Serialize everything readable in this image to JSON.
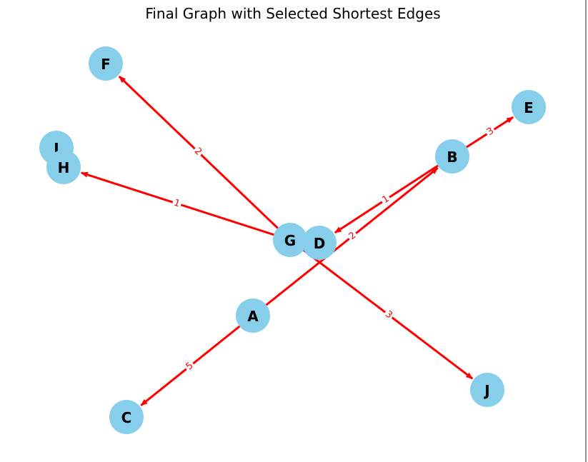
{
  "title": "Final Graph with Selected Shortest Edges",
  "colors": {
    "node": "#87ceeb",
    "edge": "#ff0000",
    "label": "#000000"
  },
  "nodes": [
    {
      "id": "A",
      "label": "A"
    },
    {
      "id": "B",
      "label": "B"
    },
    {
      "id": "C",
      "label": "C"
    },
    {
      "id": "D",
      "label": "D"
    },
    {
      "id": "E",
      "label": "E"
    },
    {
      "id": "F",
      "label": "F"
    },
    {
      "id": "G",
      "label": "G"
    },
    {
      "id": "H",
      "label": "H"
    },
    {
      "id": "I",
      "label": "I"
    },
    {
      "id": "J",
      "label": "J"
    }
  ],
  "edges": [
    {
      "from": "A",
      "to": "B",
      "weight": "2"
    },
    {
      "from": "A",
      "to": "C",
      "weight": "5"
    },
    {
      "from": "B",
      "to": "E",
      "weight": "3"
    },
    {
      "from": "B",
      "to": "D",
      "weight": "1"
    },
    {
      "from": "G",
      "to": "F",
      "weight": "2"
    },
    {
      "from": "G",
      "to": "H",
      "weight": "1"
    },
    {
      "from": "G",
      "to": "J",
      "weight": "3"
    }
  ]
}
